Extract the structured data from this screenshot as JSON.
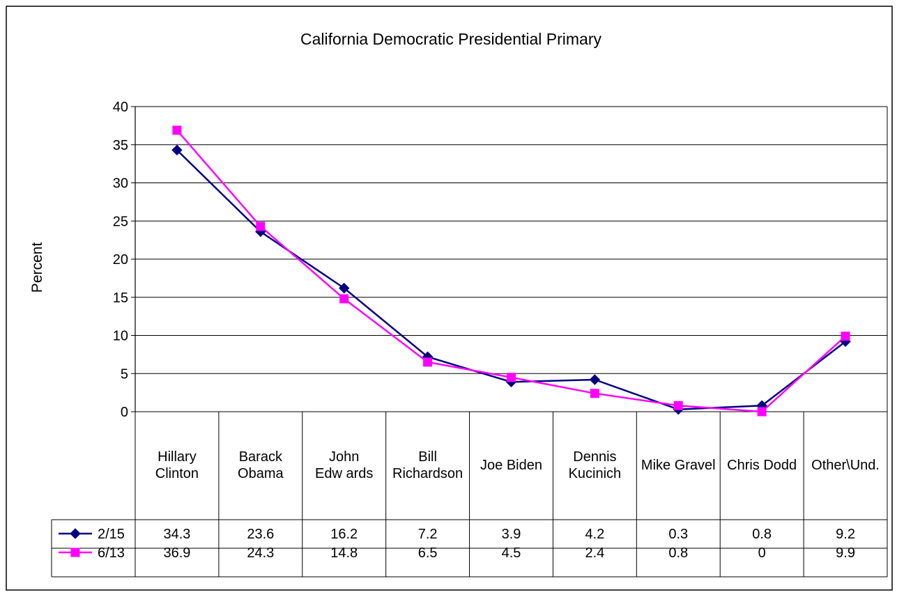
{
  "chart_data": {
    "type": "line",
    "title": "California Democratic Presidential Primary",
    "ylabel": "Percent",
    "xlabel": "",
    "ylim": [
      0,
      40
    ],
    "yticks": [
      0,
      5,
      10,
      15,
      20,
      25,
      30,
      35,
      40
    ],
    "grid": true,
    "legend_placement": "data-table",
    "categories": [
      [
        "Hillary",
        "Clinton"
      ],
      [
        "Barack",
        "Obama"
      ],
      [
        "John",
        "Edw ards"
      ],
      [
        "Bill",
        "Richardson"
      ],
      [
        "Joe Biden"
      ],
      [
        "Dennis",
        "Kucinich"
      ],
      [
        "Mike Gravel"
      ],
      [
        "Chris Dodd"
      ],
      [
        "Other\\Und."
      ]
    ],
    "series": [
      {
        "name": "2/15",
        "color": "#000080",
        "marker": "diamond",
        "values": [
          34.3,
          23.6,
          16.2,
          7.2,
          3.9,
          4.2,
          0.3,
          0.8,
          9.2
        ],
        "labels": [
          "34.3",
          "23.6",
          "16.2",
          "7.2",
          "3.9",
          "4.2",
          "0.3",
          "0.8",
          "9.2"
        ]
      },
      {
        "name": "6/13",
        "color": "#FF00FF",
        "marker": "square",
        "values": [
          36.9,
          24.3,
          14.8,
          6.5,
          4.5,
          2.4,
          0.8,
          0,
          9.9
        ],
        "labels": [
          "36.9",
          "24.3",
          "14.8",
          "6.5",
          "4.5",
          "2.4",
          "0.8",
          "0",
          "9.9"
        ]
      }
    ]
  }
}
